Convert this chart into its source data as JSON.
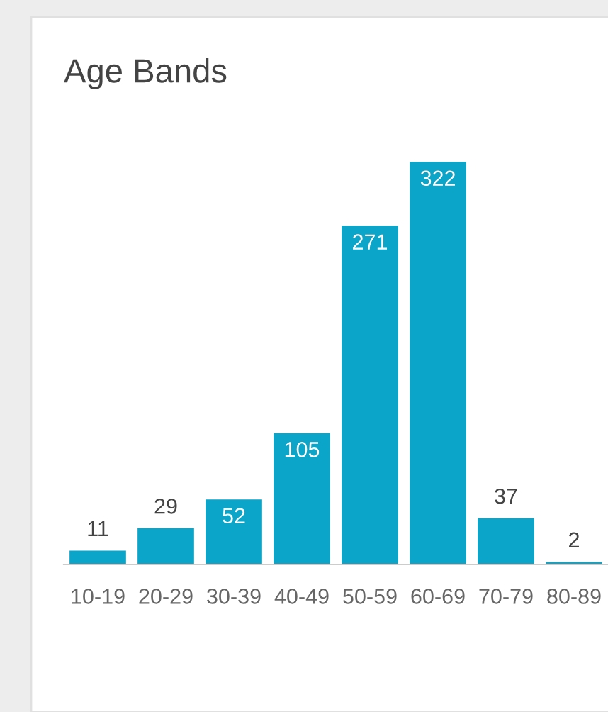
{
  "chart_data": {
    "type": "bar",
    "title": "Age Bands",
    "categories": [
      "10-19",
      "20-29",
      "30-39",
      "40-49",
      "50-59",
      "60-69",
      "70-79",
      "80-89"
    ],
    "values": [
      11,
      29,
      52,
      105,
      271,
      322,
      37,
      2
    ],
    "color": "#0aa5c8",
    "data_labels": true
  }
}
